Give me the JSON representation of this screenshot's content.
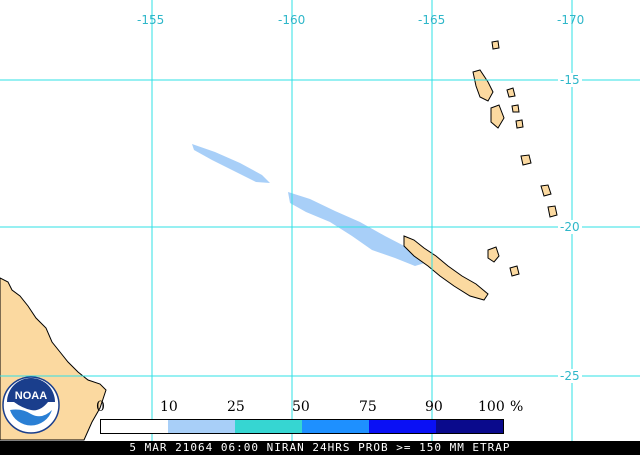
{
  "map": {
    "ocean_color": "#ffffff",
    "land_color": "#fbd9a0",
    "coast_color": "#000000",
    "grid_color": "#2fe0e6",
    "probability_color": "#a8cff8",
    "longitude_labels": [
      "-155",
      "-160",
      "-165",
      "-170"
    ],
    "latitude_labels": [
      "-15",
      "-20",
      "-25"
    ]
  },
  "logo": {
    "text": "NOAA",
    "icon": "noaa-logo-icon"
  },
  "legend": {
    "ticks": [
      "0",
      "10",
      "25",
      "50",
      "75",
      "90",
      "100",
      "%"
    ],
    "colors": [
      "#ffffff",
      "#a8cff8",
      "#36d6d2",
      "#1e90ff",
      "#0a10f5",
      "#0a0a8c"
    ]
  },
  "footer": {
    "caption": "5 MAR 21064 06:00 NIRAN 24HRS PROB >= 150 MM ETRAP"
  }
}
